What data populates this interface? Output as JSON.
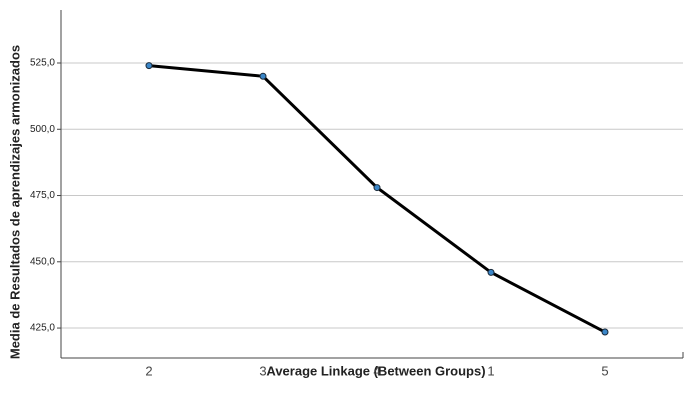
{
  "chart_data": {
    "type": "line",
    "x_label": "Average Linkage (Between Groups)",
    "y_label": "Media de Resultados de aprendizajes armonizados",
    "categories": [
      "2",
      "3",
      "4",
      "1",
      "5"
    ],
    "series": [
      {
        "name": "Media",
        "color": "#000000",
        "marker_color": "#3a86c8",
        "values": [
          524,
          520,
          478,
          446,
          423.5
        ]
      }
    ],
    "ylim": [
      413.7,
      545
    ],
    "yticks": [
      {
        "value": 425,
        "label": "425,0"
      },
      {
        "value": 450,
        "label": "450,0"
      },
      {
        "value": 475,
        "label": "475,0"
      },
      {
        "value": 500,
        "label": "500,0"
      },
      {
        "value": 525,
        "label": "525,0"
      }
    ],
    "grid": true
  }
}
